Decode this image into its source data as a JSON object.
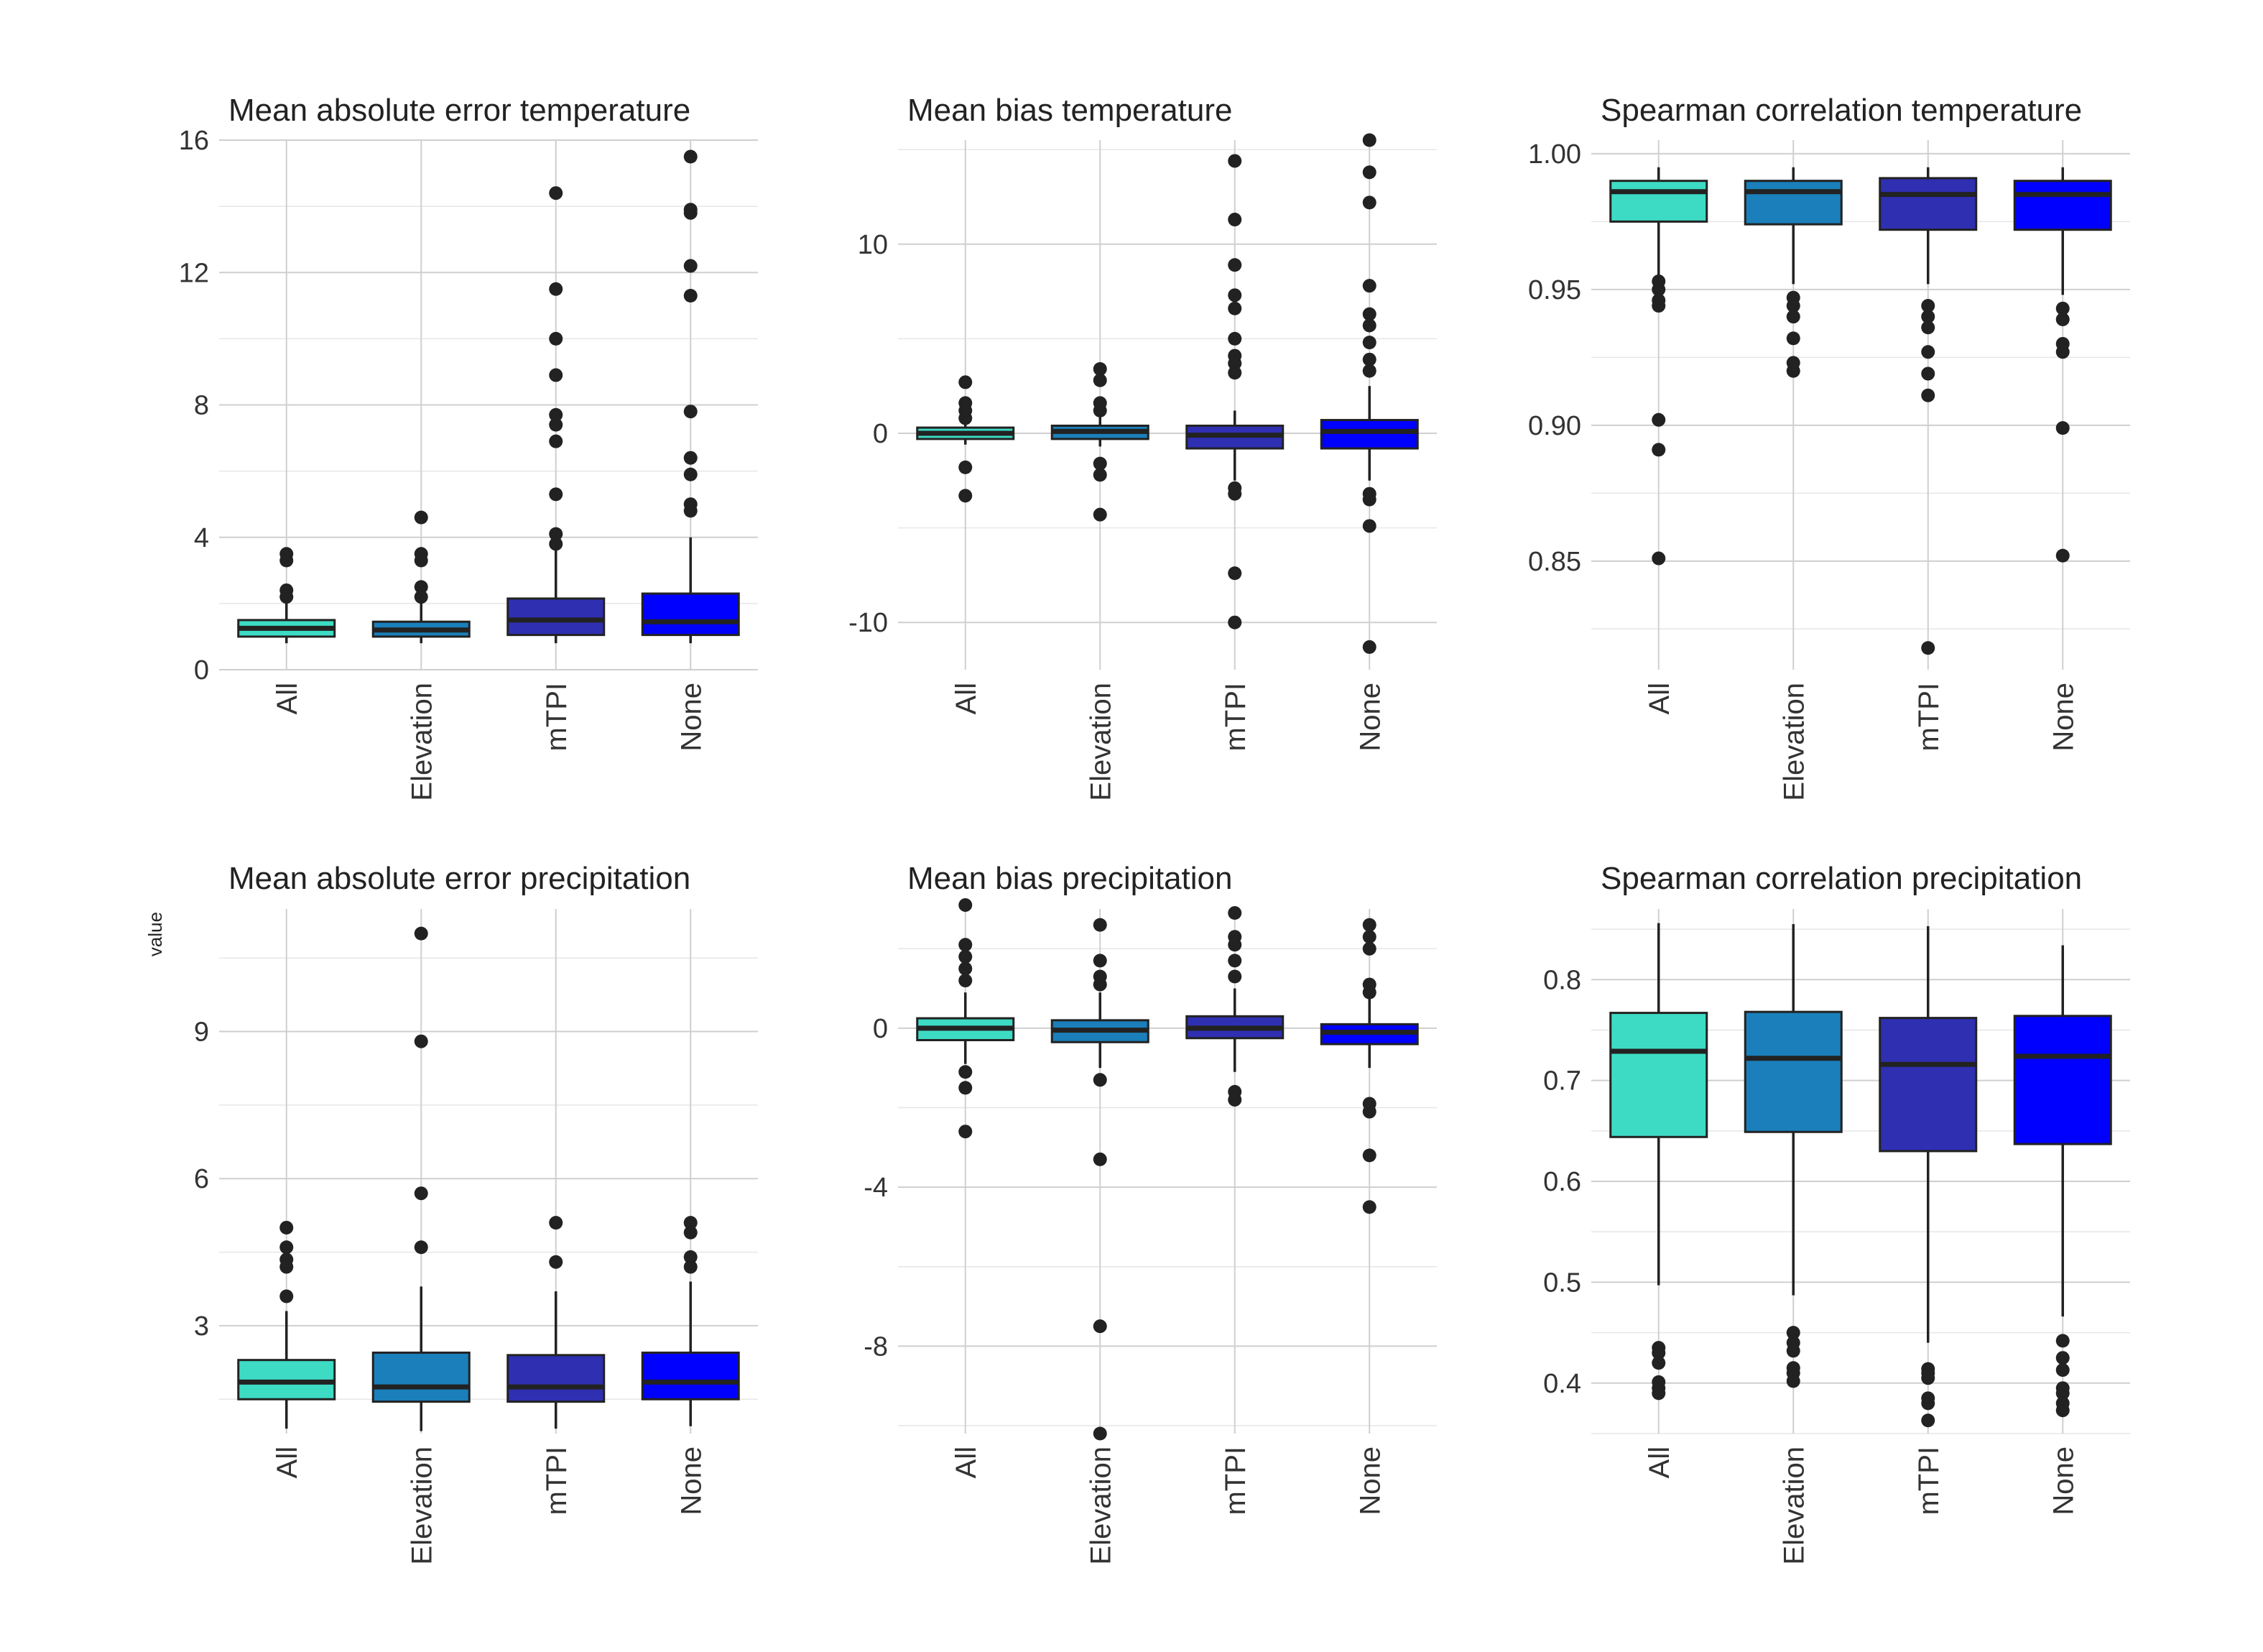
{
  "y_axis_label": "value",
  "group_colors": {
    "All": "#3ddbc4",
    "Elevation": "#1a7fba",
    "mTPI": "#2f2fb2",
    "None": "#0000ff"
  },
  "chart_data": [
    {
      "type": "boxplot",
      "title": "Mean absolute error temperature",
      "categories": [
        "All",
        "Elevation",
        "mTPI",
        "None"
      ],
      "ylim": [
        0,
        16
      ],
      "yticks": [
        0,
        4,
        8,
        12,
        16
      ],
      "ytick_labels": [
        "0",
        "4",
        "8",
        "12",
        "16"
      ],
      "grid": true,
      "boxes": [
        {
          "category": "All",
          "whisker_low": 0.8,
          "q1": 1.0,
          "median": 1.25,
          "q3": 1.5,
          "whisker_high": 2.0,
          "outliers": [
            2.2,
            2.4,
            3.3,
            3.5
          ]
        },
        {
          "category": "Elevation",
          "whisker_low": 0.8,
          "q1": 1.0,
          "median": 1.2,
          "q3": 1.45,
          "whisker_high": 2.0,
          "outliers": [
            2.2,
            2.5,
            3.3,
            3.5,
            4.6
          ]
        },
        {
          "category": "mTPI",
          "whisker_low": 0.8,
          "q1": 1.05,
          "median": 1.5,
          "q3": 2.15,
          "whisker_high": 3.7,
          "outliers": [
            3.8,
            4.1,
            5.3,
            6.9,
            7.4,
            7.7,
            8.9,
            10.0,
            11.5,
            14.4
          ]
        },
        {
          "category": "None",
          "whisker_low": 0.8,
          "q1": 1.05,
          "median": 1.45,
          "q3": 2.3,
          "whisker_high": 4.0,
          "outliers": [
            4.8,
            5.0,
            5.9,
            6.4,
            7.8,
            11.3,
            12.2,
            13.8,
            13.9,
            15.5
          ]
        }
      ]
    },
    {
      "type": "boxplot",
      "title": "Mean bias temperature",
      "categories": [
        "All",
        "Elevation",
        "mTPI",
        "None"
      ],
      "ylim": [
        -12.5,
        15.5
      ],
      "yticks": [
        -10,
        0,
        10
      ],
      "ytick_labels": [
        "-10",
        "0",
        "10"
      ],
      "grid": true,
      "boxes": [
        {
          "category": "All",
          "whisker_low": -0.6,
          "q1": -0.3,
          "median": 0.0,
          "q3": 0.3,
          "whisker_high": 0.8,
          "outliers": [
            -3.3,
            -1.8,
            0.8,
            1.2,
            1.6,
            2.7
          ]
        },
        {
          "category": "Elevation",
          "whisker_low": -0.7,
          "q1": -0.3,
          "median": 0.1,
          "q3": 0.4,
          "whisker_high": 1.0,
          "outliers": [
            -4.3,
            -2.2,
            -1.6,
            1.2,
            1.6,
            2.8,
            3.4
          ]
        },
        {
          "category": "mTPI",
          "whisker_low": -2.5,
          "q1": -0.8,
          "median": -0.1,
          "q3": 0.4,
          "whisker_high": 1.2,
          "outliers": [
            -10.0,
            -7.4,
            -3.2,
            -2.9,
            3.2,
            3.7,
            4.1,
            5.0,
            6.6,
            7.3,
            8.9,
            11.3,
            14.4
          ]
        },
        {
          "category": "None",
          "whisker_low": -2.5,
          "q1": -0.8,
          "median": 0.1,
          "q3": 0.7,
          "whisker_high": 2.5,
          "outliers": [
            -11.3,
            -4.9,
            -3.5,
            -3.2,
            3.3,
            3.9,
            4.8,
            5.7,
            6.3,
            7.8,
            12.2,
            13.8,
            15.5
          ]
        }
      ]
    },
    {
      "type": "boxplot",
      "title": "Spearman correlation temperature",
      "categories": [
        "All",
        "Elevation",
        "mTPI",
        "None"
      ],
      "ylim": [
        0.81,
        1.005
      ],
      "yticks": [
        0.85,
        0.9,
        0.95,
        1.0
      ],
      "ytick_labels": [
        "0.85",
        "0.90",
        "0.95",
        "1.00"
      ],
      "grid": true,
      "boxes": [
        {
          "category": "All",
          "whisker_low": 0.955,
          "q1": 0.975,
          "median": 0.986,
          "q3": 0.99,
          "whisker_high": 0.995,
          "outliers": [
            0.851,
            0.891,
            0.902,
            0.944,
            0.946,
            0.95,
            0.953
          ]
        },
        {
          "category": "Elevation",
          "whisker_low": 0.952,
          "q1": 0.974,
          "median": 0.986,
          "q3": 0.99,
          "whisker_high": 0.995,
          "outliers": [
            0.92,
            0.923,
            0.932,
            0.94,
            0.944,
            0.947
          ]
        },
        {
          "category": "mTPI",
          "whisker_low": 0.952,
          "q1": 0.972,
          "median": 0.985,
          "q3": 0.991,
          "whisker_high": 0.995,
          "outliers": [
            0.818,
            0.911,
            0.919,
            0.927,
            0.936,
            0.94,
            0.944
          ]
        },
        {
          "category": "None",
          "whisker_low": 0.948,
          "q1": 0.972,
          "median": 0.985,
          "q3": 0.99,
          "whisker_high": 0.995,
          "outliers": [
            0.852,
            0.899,
            0.927,
            0.93,
            0.939,
            0.943
          ]
        }
      ]
    },
    {
      "type": "boxplot",
      "title": "Mean absolute error precipitation",
      "categories": [
        "All",
        "Elevation",
        "mTPI",
        "None"
      ],
      "ylim": [
        0.8,
        11.5
      ],
      "yticks": [
        3,
        6,
        9
      ],
      "ytick_labels": [
        "3",
        "6",
        "9"
      ],
      "grid": true,
      "boxes": [
        {
          "category": "All",
          "whisker_low": 0.9,
          "q1": 1.5,
          "median": 1.85,
          "q3": 2.3,
          "whisker_high": 3.3,
          "outliers": [
            3.6,
            4.2,
            4.35,
            4.6,
            5.0
          ]
        },
        {
          "category": "Elevation",
          "whisker_low": 0.85,
          "q1": 1.45,
          "median": 1.75,
          "q3": 2.45,
          "whisker_high": 3.8,
          "outliers": [
            4.6,
            5.7,
            8.8,
            11.0
          ]
        },
        {
          "category": "mTPI",
          "whisker_low": 0.9,
          "q1": 1.45,
          "median": 1.75,
          "q3": 2.4,
          "whisker_high": 3.7,
          "outliers": [
            4.3,
            5.1
          ]
        },
        {
          "category": "None",
          "whisker_low": 0.95,
          "q1": 1.5,
          "median": 1.85,
          "q3": 2.45,
          "whisker_high": 3.9,
          "outliers": [
            4.2,
            4.4,
            4.9,
            5.1
          ]
        }
      ]
    },
    {
      "type": "boxplot",
      "title": "Mean bias precipitation",
      "categories": [
        "All",
        "Elevation",
        "mTPI",
        "None"
      ],
      "ylim": [
        -10.2,
        3.0
      ],
      "yticks": [
        -8,
        -4,
        0
      ],
      "ytick_labels": [
        "-8",
        "-4",
        "0"
      ],
      "grid": true,
      "boxes": [
        {
          "category": "All",
          "whisker_low": -0.9,
          "q1": -0.3,
          "median": 0.0,
          "q3": 0.25,
          "whisker_high": 0.9,
          "outliers": [
            -2.6,
            -1.5,
            -1.1,
            1.2,
            1.5,
            1.8,
            2.1,
            3.1
          ]
        },
        {
          "category": "Elevation",
          "whisker_low": -1.0,
          "q1": -0.35,
          "median": -0.05,
          "q3": 0.2,
          "whisker_high": 0.9,
          "outliers": [
            -10.2,
            -7.5,
            -3.3,
            -1.3,
            1.1,
            1.3,
            1.7,
            2.6
          ]
        },
        {
          "category": "mTPI",
          "whisker_low": -1.1,
          "q1": -0.25,
          "median": 0.0,
          "q3": 0.3,
          "whisker_high": 1.0,
          "outliers": [
            -1.8,
            -1.6,
            1.3,
            1.7,
            2.1,
            2.3,
            2.9
          ]
        },
        {
          "category": "None",
          "whisker_low": -1.0,
          "q1": -0.4,
          "median": -0.1,
          "q3": 0.1,
          "whisker_high": 0.8,
          "outliers": [
            -4.5,
            -3.2,
            -2.1,
            -1.9,
            0.9,
            1.1,
            2.0,
            2.3,
            2.6
          ]
        }
      ]
    },
    {
      "type": "boxplot",
      "title": "Spearman correlation precipitation",
      "categories": [
        "All",
        "Elevation",
        "mTPI",
        "None"
      ],
      "ylim": [
        0.35,
        0.87
      ],
      "yticks": [
        0.4,
        0.5,
        0.6,
        0.7,
        0.8
      ],
      "ytick_labels": [
        "0.4",
        "0.5",
        "0.6",
        "0.7",
        "0.8"
      ],
      "grid": true,
      "boxes": [
        {
          "category": "All",
          "whisker_low": 0.497,
          "q1": 0.644,
          "median": 0.729,
          "q3": 0.767,
          "whisker_high": 0.856,
          "outliers": [
            0.39,
            0.395,
            0.401,
            0.42,
            0.43,
            0.435
          ]
        },
        {
          "category": "Elevation",
          "whisker_low": 0.487,
          "q1": 0.649,
          "median": 0.722,
          "q3": 0.768,
          "whisker_high": 0.855,
          "outliers": [
            0.402,
            0.41,
            0.415,
            0.432,
            0.44,
            0.45
          ]
        },
        {
          "category": "mTPI",
          "whisker_low": 0.44,
          "q1": 0.63,
          "median": 0.716,
          "q3": 0.762,
          "whisker_high": 0.853,
          "outliers": [
            0.363,
            0.38,
            0.385,
            0.405,
            0.41,
            0.414
          ]
        },
        {
          "category": "None",
          "whisker_low": 0.466,
          "q1": 0.637,
          "median": 0.724,
          "q3": 0.764,
          "whisker_high": 0.834,
          "outliers": [
            0.373,
            0.38,
            0.39,
            0.395,
            0.413,
            0.425,
            0.442
          ]
        }
      ]
    }
  ]
}
